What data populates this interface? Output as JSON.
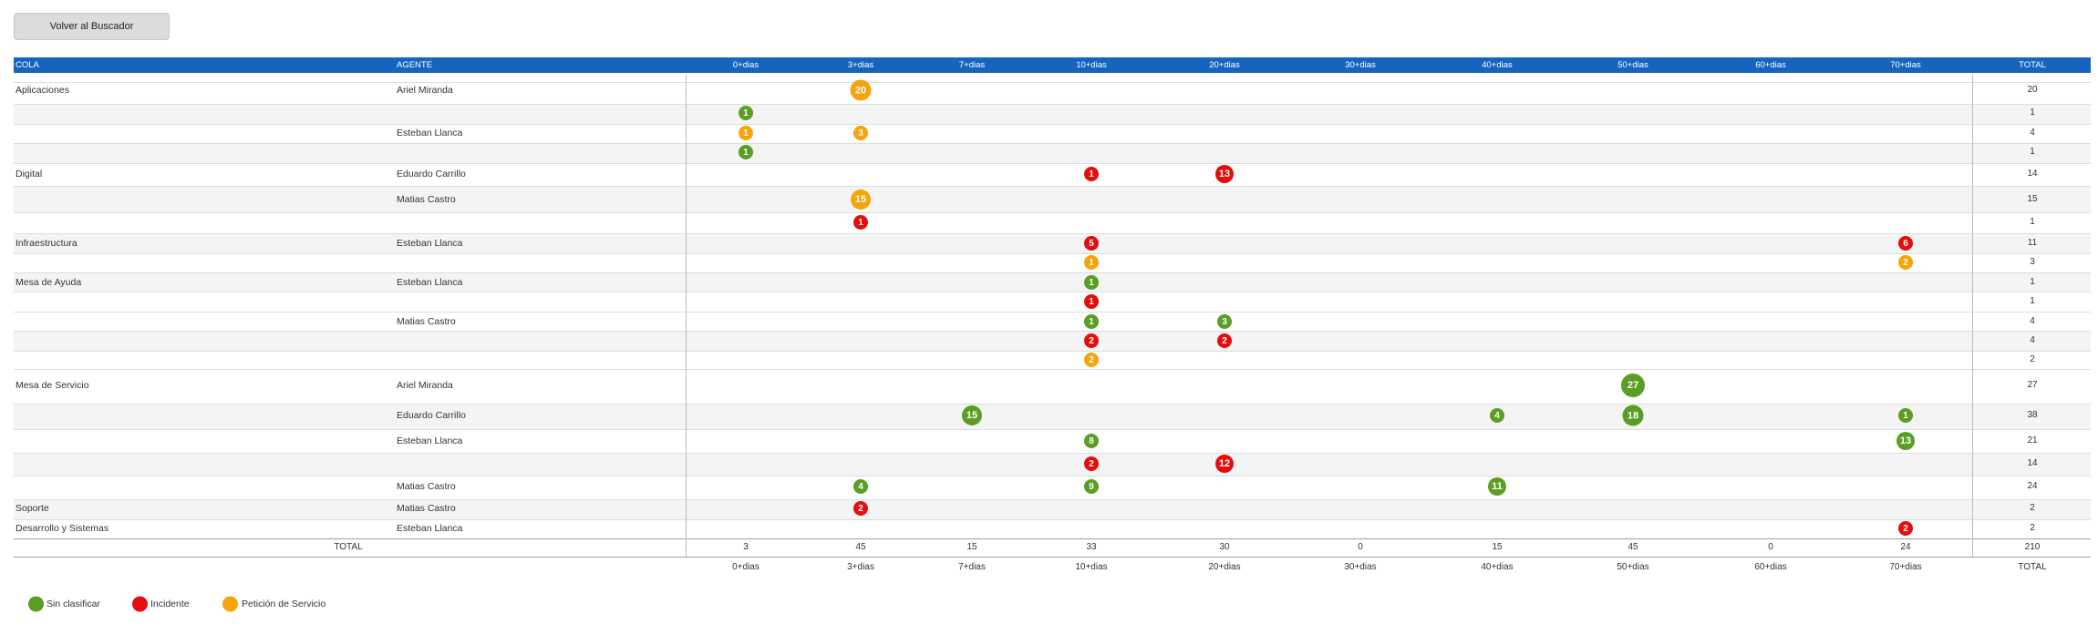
{
  "back_button": {
    "label": "Volver al Buscador"
  },
  "header": {
    "cola": "COLA",
    "agente": "AGENTE",
    "columns": [
      "0+dias",
      "3+dias",
      "7+dias",
      "10+dias",
      "20+dias",
      "30+dias",
      "40+dias",
      "50+dias",
      "60+dias",
      "70+dias"
    ],
    "total": "TOTAL"
  },
  "colors": {
    "sin_clasificar": "#5a9e24",
    "incidente": "#e50d0d",
    "peticion": "#f5a40b",
    "header_bg": "#1565c0"
  },
  "rows": [
    {
      "cola": "Aplicaciones",
      "agente": "Ariel Miranda",
      "cells": [
        {
          "col": 1,
          "value": 20,
          "type": "peticion"
        }
      ],
      "total": "20"
    },
    {
      "cola": "",
      "agente": "",
      "cells": [
        {
          "col": 0,
          "value": 1,
          "type": "sin_clasificar"
        }
      ],
      "total": "1"
    },
    {
      "cola": "",
      "agente": "Esteban Llanca",
      "cells": [
        {
          "col": 0,
          "value": 1,
          "type": "peticion"
        },
        {
          "col": 1,
          "value": 3,
          "type": "peticion"
        }
      ],
      "total": "4"
    },
    {
      "cola": "",
      "agente": "",
      "cells": [
        {
          "col": 0,
          "value": 1,
          "type": "sin_clasificar"
        }
      ],
      "total": "1"
    },
    {
      "cola": "Digital",
      "agente": "Eduardo Carrillo",
      "cells": [
        {
          "col": 3,
          "value": 1,
          "type": "incidente"
        },
        {
          "col": 4,
          "value": 13,
          "type": "incidente"
        }
      ],
      "total": "14"
    },
    {
      "cola": "",
      "agente": "Matias Castro",
      "cells": [
        {
          "col": 1,
          "value": 15,
          "type": "peticion"
        }
      ],
      "total": "15"
    },
    {
      "cola": "",
      "agente": "",
      "cells": [
        {
          "col": 1,
          "value": 1,
          "type": "incidente"
        }
      ],
      "total": "1"
    },
    {
      "cola": "Infraestructura",
      "agente": "Esteban Llanca",
      "cells": [
        {
          "col": 3,
          "value": 5,
          "type": "incidente"
        },
        {
          "col": 9,
          "value": 6,
          "type": "incidente"
        }
      ],
      "total": "11"
    },
    {
      "cola": "",
      "agente": "",
      "cells": [
        {
          "col": 3,
          "value": 1,
          "type": "peticion"
        },
        {
          "col": 9,
          "value": 2,
          "type": "peticion"
        }
      ],
      "total": "3"
    },
    {
      "cola": "Mesa de Ayuda",
      "agente": "Esteban Llanca",
      "cells": [
        {
          "col": 3,
          "value": 1,
          "type": "sin_clasificar"
        }
      ],
      "total": "1"
    },
    {
      "cola": "",
      "agente": "",
      "cells": [
        {
          "col": 3,
          "value": 1,
          "type": "incidente"
        }
      ],
      "total": "1"
    },
    {
      "cola": "",
      "agente": "Matias Castro",
      "cells": [
        {
          "col": 3,
          "value": 1,
          "type": "sin_clasificar"
        },
        {
          "col": 4,
          "value": 3,
          "type": "sin_clasificar"
        }
      ],
      "total": "4"
    },
    {
      "cola": "",
      "agente": "",
      "cells": [
        {
          "col": 3,
          "value": 2,
          "type": "incidente"
        },
        {
          "col": 4,
          "value": 2,
          "type": "incidente"
        }
      ],
      "total": "4"
    },
    {
      "cola": "",
      "agente": "",
      "cells": [
        {
          "col": 3,
          "value": 2,
          "type": "peticion"
        }
      ],
      "total": "2"
    },
    {
      "cola": "Mesa de Servicio",
      "agente": "Ariel Miranda",
      "cells": [
        {
          "col": 7,
          "value": 27,
          "type": "sin_clasificar"
        }
      ],
      "total": "27"
    },
    {
      "cola": "",
      "agente": "Eduardo Carrillo",
      "cells": [
        {
          "col": 2,
          "value": 15,
          "type": "sin_clasificar"
        },
        {
          "col": 6,
          "value": 4,
          "type": "sin_clasificar"
        },
        {
          "col": 7,
          "value": 18,
          "type": "sin_clasificar"
        },
        {
          "col": 9,
          "value": 1,
          "type": "sin_clasificar"
        }
      ],
      "total": "38"
    },
    {
      "cola": "",
      "agente": "Esteban Llanca",
      "cells": [
        {
          "col": 3,
          "value": 8,
          "type": "sin_clasificar"
        },
        {
          "col": 9,
          "value": 13,
          "type": "sin_clasificar"
        }
      ],
      "total": "21"
    },
    {
      "cola": "",
      "agente": "",
      "cells": [
        {
          "col": 3,
          "value": 2,
          "type": "incidente"
        },
        {
          "col": 4,
          "value": 12,
          "type": "incidente"
        }
      ],
      "total": "14"
    },
    {
      "cola": "",
      "agente": "Matias Castro",
      "cells": [
        {
          "col": 1,
          "value": 4,
          "type": "sin_clasificar"
        },
        {
          "col": 3,
          "value": 9,
          "type": "sin_clasificar"
        },
        {
          "col": 6,
          "value": 11,
          "type": "sin_clasificar"
        }
      ],
      "total": "24"
    },
    {
      "cola": "Soporte",
      "agente": "Matias Castro",
      "cells": [
        {
          "col": 1,
          "value": 2,
          "type": "incidente"
        }
      ],
      "total": "2"
    },
    {
      "cola": "Desarrollo y Sistemas",
      "agente": "Esteban Llanca",
      "cells": [
        {
          "col": 9,
          "value": 2,
          "type": "incidente"
        }
      ],
      "total": "2"
    }
  ],
  "totals": {
    "label": "TOTAL",
    "values": [
      "3",
      "45",
      "15",
      "33",
      "30",
      "0",
      "15",
      "45",
      "0",
      "24"
    ],
    "grand_total": "210"
  },
  "legend": [
    {
      "type": "sin_clasificar",
      "label": "Sin clasificar"
    },
    {
      "type": "incidente",
      "label": "Incidente"
    },
    {
      "type": "peticion",
      "label": "Petición de Servicio"
    }
  ]
}
